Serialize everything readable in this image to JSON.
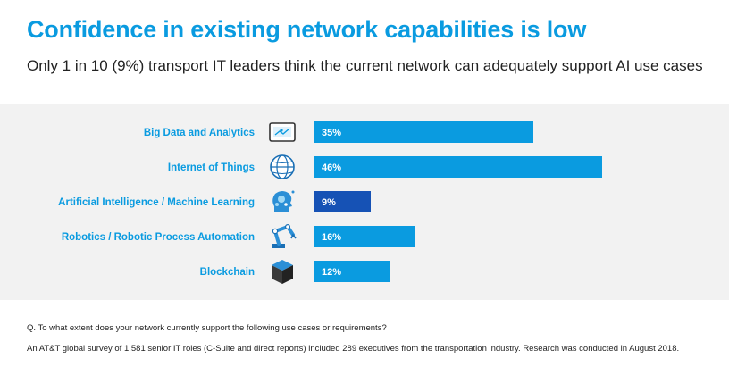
{
  "title": "Confidence in existing network capabilities is low",
  "subtitle": "Only 1 in 10 (9%) transport IT leaders think the current network can adequately support AI use cases",
  "footer": {
    "question": "Q. To what extent does your network currently support the following use cases or requirements?",
    "source": "An AT&T global survey of 1,581 senior IT roles (C-Suite and direct reports) included 289 executives from the transportation industry. Research was conducted in August 2018."
  },
  "colors": {
    "title": "#0a9be0",
    "bar": "#0a9be0",
    "bar_highlight": "#1652b5",
    "panel": "#f2f2f2"
  },
  "chart_data": {
    "type": "bar",
    "orientation": "horizontal",
    "categories": [
      "Big Data and Analytics",
      "Internet of Things",
      "Artificial Intelligence / Machine Learning",
      "Robotics / Robotic Process Automation",
      "Blockchain"
    ],
    "values": [
      35,
      46,
      9,
      16,
      12
    ],
    "value_labels": [
      "35%",
      "46%",
      "9%",
      "16%",
      "12%"
    ],
    "icons": [
      "tablet-analytics-icon",
      "globe-icon",
      "ai-head-icon",
      "robot-arm-icon",
      "cube-icon"
    ],
    "highlight_index": 2,
    "unit": "%",
    "xlim": [
      0,
      100
    ],
    "grid": false,
    "legend": "none"
  }
}
